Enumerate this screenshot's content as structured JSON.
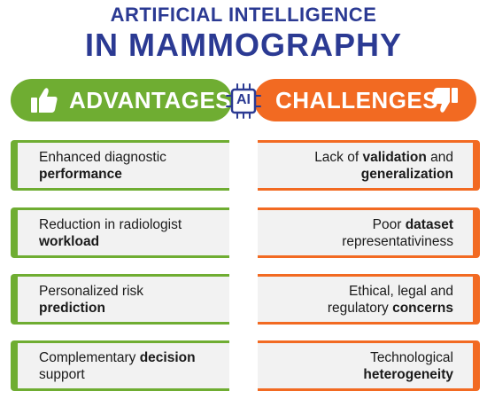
{
  "title": {
    "line1": "ARTIFICIAL INTELLIGENCE",
    "line2": "IN MAMMOGRAPHY"
  },
  "headers": {
    "advantages": "ADVANTAGES",
    "challenges": "CHALLENGES",
    "center_badge": "AI"
  },
  "icons": {
    "advantages": "thumbs-up-icon",
    "challenges": "thumbs-down-icon",
    "center": "ai-chip-icon"
  },
  "colors": {
    "title": "#2b3a93",
    "advantages": "#6fad32",
    "challenges": "#f26a22",
    "card_bg": "#f2f2f2"
  },
  "advantages": [
    {
      "plain1": "Enhanced diagnostic",
      "bold1": "",
      "plain2": "",
      "bold2": "performance"
    },
    {
      "plain1": "Reduction in radiologist",
      "bold1": "",
      "plain2": "",
      "bold2": "workload"
    },
    {
      "plain1": "Personalized risk",
      "bold1": "",
      "plain2": "",
      "bold2": "prediction"
    },
    {
      "plain1": "Complementary ",
      "bold1": "decision",
      "plain2": "support",
      "bold2": ""
    }
  ],
  "challenges": [
    {
      "plain1": "Lack of ",
      "bold1": "validation",
      "tail1": " and",
      "plain2": "",
      "bold2": "generalization",
      "tail2": ""
    },
    {
      "plain1": "Poor ",
      "bold1": "dataset",
      "tail1": "",
      "plain2": "representativiness",
      "bold2": "",
      "tail2": ""
    },
    {
      "plain1": "Ethical, legal and",
      "bold1": "",
      "tail1": "",
      "plain2": "regulatory ",
      "bold2": "concerns",
      "tail2": ""
    },
    {
      "plain1": "Technological",
      "bold1": "",
      "tail1": "",
      "plain2": "",
      "bold2": "heterogeneity",
      "tail2": ""
    }
  ]
}
